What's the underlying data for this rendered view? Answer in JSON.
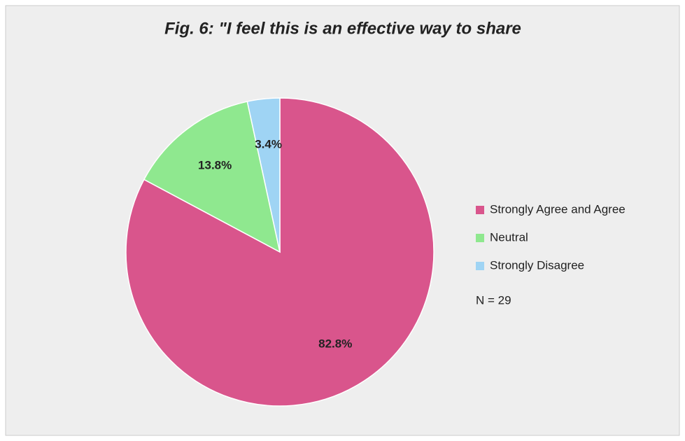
{
  "chart_data": {
    "type": "pie",
    "title": "Fig. 6: \"I feel this is an effective way to share",
    "categories": [
      "Strongly Agree and Agree",
      "Neutral",
      "Strongly Disagree"
    ],
    "values": [
      82.8,
      13.8,
      3.4
    ],
    "value_labels": [
      "82.8%",
      "13.8%",
      "3.4%"
    ],
    "colors": [
      "#d9558c",
      "#8fe88f",
      "#9fd4f4"
    ],
    "note": "N = 29"
  }
}
